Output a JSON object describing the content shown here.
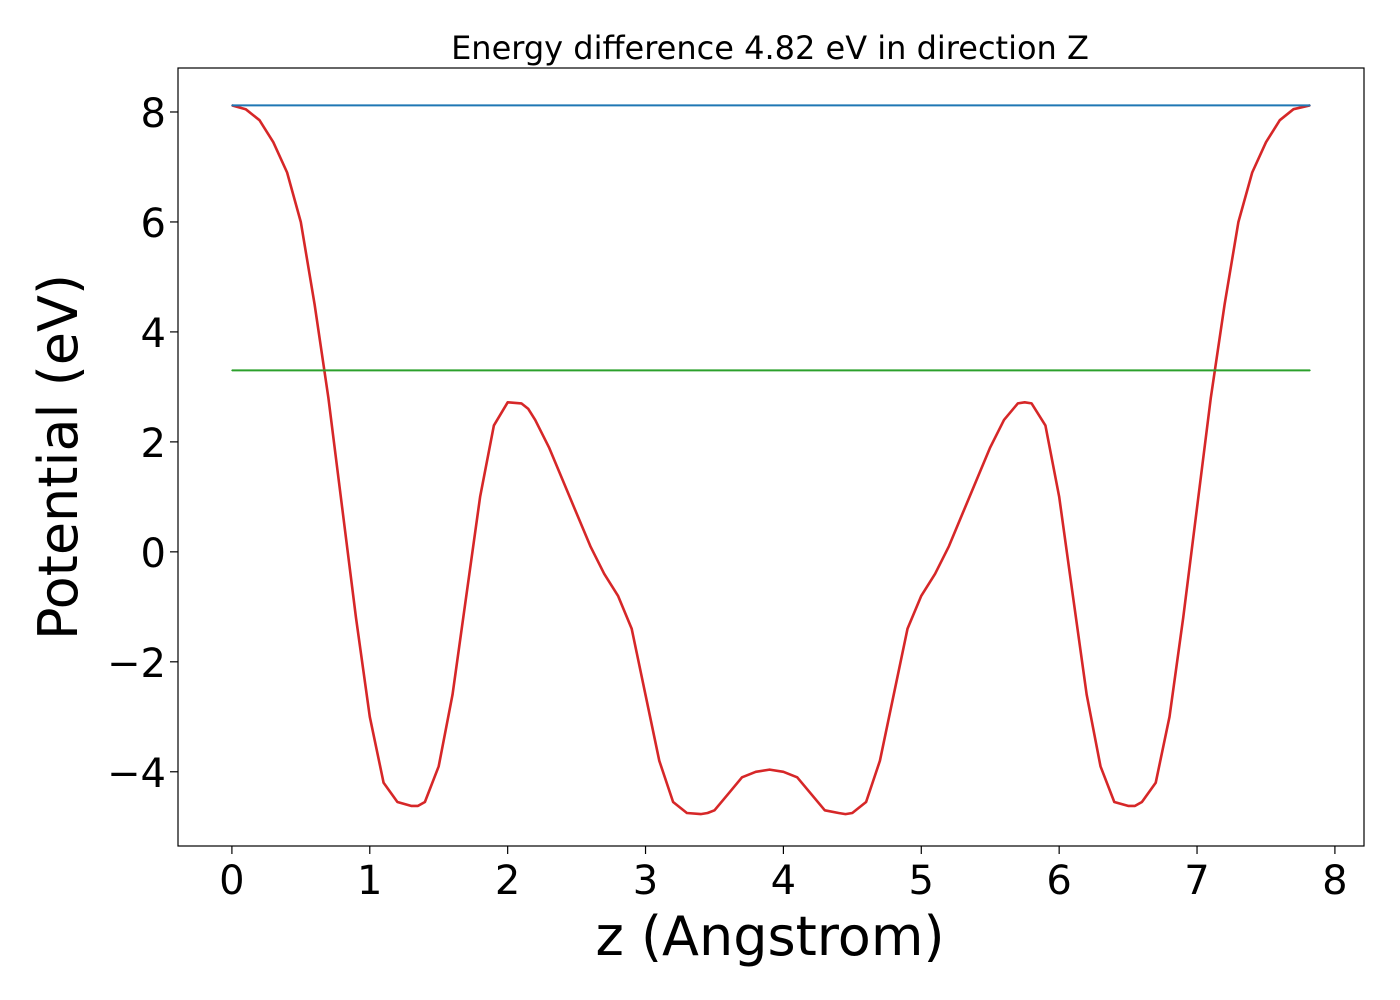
{
  "chart_data": {
    "type": "line",
    "title": "Energy difference 4.82 eV in direction Z",
    "xlabel": "z (Angstrom)",
    "ylabel": "Potential (eV)",
    "xlim": [
      -0.391,
      8.211
    ],
    "ylim": [
      -5.35,
      8.8
    ],
    "xticks": [
      0,
      1,
      2,
      3,
      4,
      5,
      6,
      7,
      8
    ],
    "yticks": [
      -4,
      -2,
      0,
      2,
      4,
      6,
      8
    ],
    "xtick_labels": [
      "0",
      "1",
      "2",
      "3",
      "4",
      "5",
      "6",
      "7",
      "8"
    ],
    "ytick_labels": [
      "−4",
      "−2",
      "0",
      "2",
      "4",
      "6",
      "8"
    ],
    "grid": false,
    "legend": "none",
    "series": [
      {
        "color": "#d62728",
        "x": [
          0.0,
          0.1,
          0.2,
          0.3,
          0.4,
          0.5,
          0.6,
          0.7,
          0.8,
          0.9,
          1.0,
          1.1,
          1.2,
          1.3,
          1.35,
          1.4,
          1.5,
          1.6,
          1.7,
          1.8,
          1.9,
          2.0,
          2.1,
          2.15,
          2.2,
          2.3,
          2.4,
          2.5,
          2.6,
          2.7,
          2.8,
          2.9,
          3.0,
          3.1,
          3.2,
          3.3,
          3.4,
          3.45,
          3.5,
          3.6,
          3.7,
          3.8,
          3.9,
          4.0,
          4.1,
          4.2,
          4.3,
          4.4,
          4.45,
          4.5,
          4.6,
          4.7,
          4.8,
          4.9,
          5.0,
          5.1,
          5.2,
          5.3,
          5.4,
          5.5,
          5.6,
          5.7,
          5.75,
          5.8,
          5.9,
          6.0,
          6.1,
          6.2,
          6.3,
          6.4,
          6.5,
          6.55,
          6.6,
          6.7,
          6.8,
          6.9,
          7.0,
          7.1,
          7.2,
          7.3,
          7.4,
          7.5,
          7.6,
          7.7,
          7.82
        ],
        "y": [
          8.12,
          8.05,
          7.85,
          7.45,
          6.9,
          6.0,
          4.5,
          2.8,
          0.8,
          -1.2,
          -3.0,
          -4.2,
          -4.55,
          -4.62,
          -4.62,
          -4.55,
          -3.9,
          -2.6,
          -0.8,
          1.0,
          2.3,
          2.72,
          2.7,
          2.6,
          2.4,
          1.9,
          1.3,
          0.7,
          0.1,
          -0.4,
          -0.8,
          -1.4,
          -2.6,
          -3.8,
          -4.55,
          -4.75,
          -4.77,
          -4.75,
          -4.7,
          -4.4,
          -4.1,
          -4.0,
          -3.96,
          -4.0,
          -4.1,
          -4.4,
          -4.7,
          -4.75,
          -4.77,
          -4.75,
          -4.55,
          -3.8,
          -2.6,
          -1.4,
          -0.8,
          -0.4,
          0.1,
          0.7,
          1.3,
          1.9,
          2.4,
          2.7,
          2.72,
          2.7,
          2.3,
          1.0,
          -0.8,
          -2.6,
          -3.9,
          -4.55,
          -4.62,
          -4.62,
          -4.55,
          -4.2,
          -3.0,
          -1.2,
          0.8,
          2.8,
          4.5,
          6.0,
          6.9,
          7.45,
          7.85,
          8.05,
          8.12
        ]
      },
      {
        "color": "#1f77b4",
        "x": [
          0.0,
          7.82
        ],
        "y": [
          8.12,
          8.12
        ]
      },
      {
        "color": "#2ca02c",
        "x": [
          0.0,
          7.82
        ],
        "y": [
          3.3,
          3.3
        ]
      }
    ]
  }
}
